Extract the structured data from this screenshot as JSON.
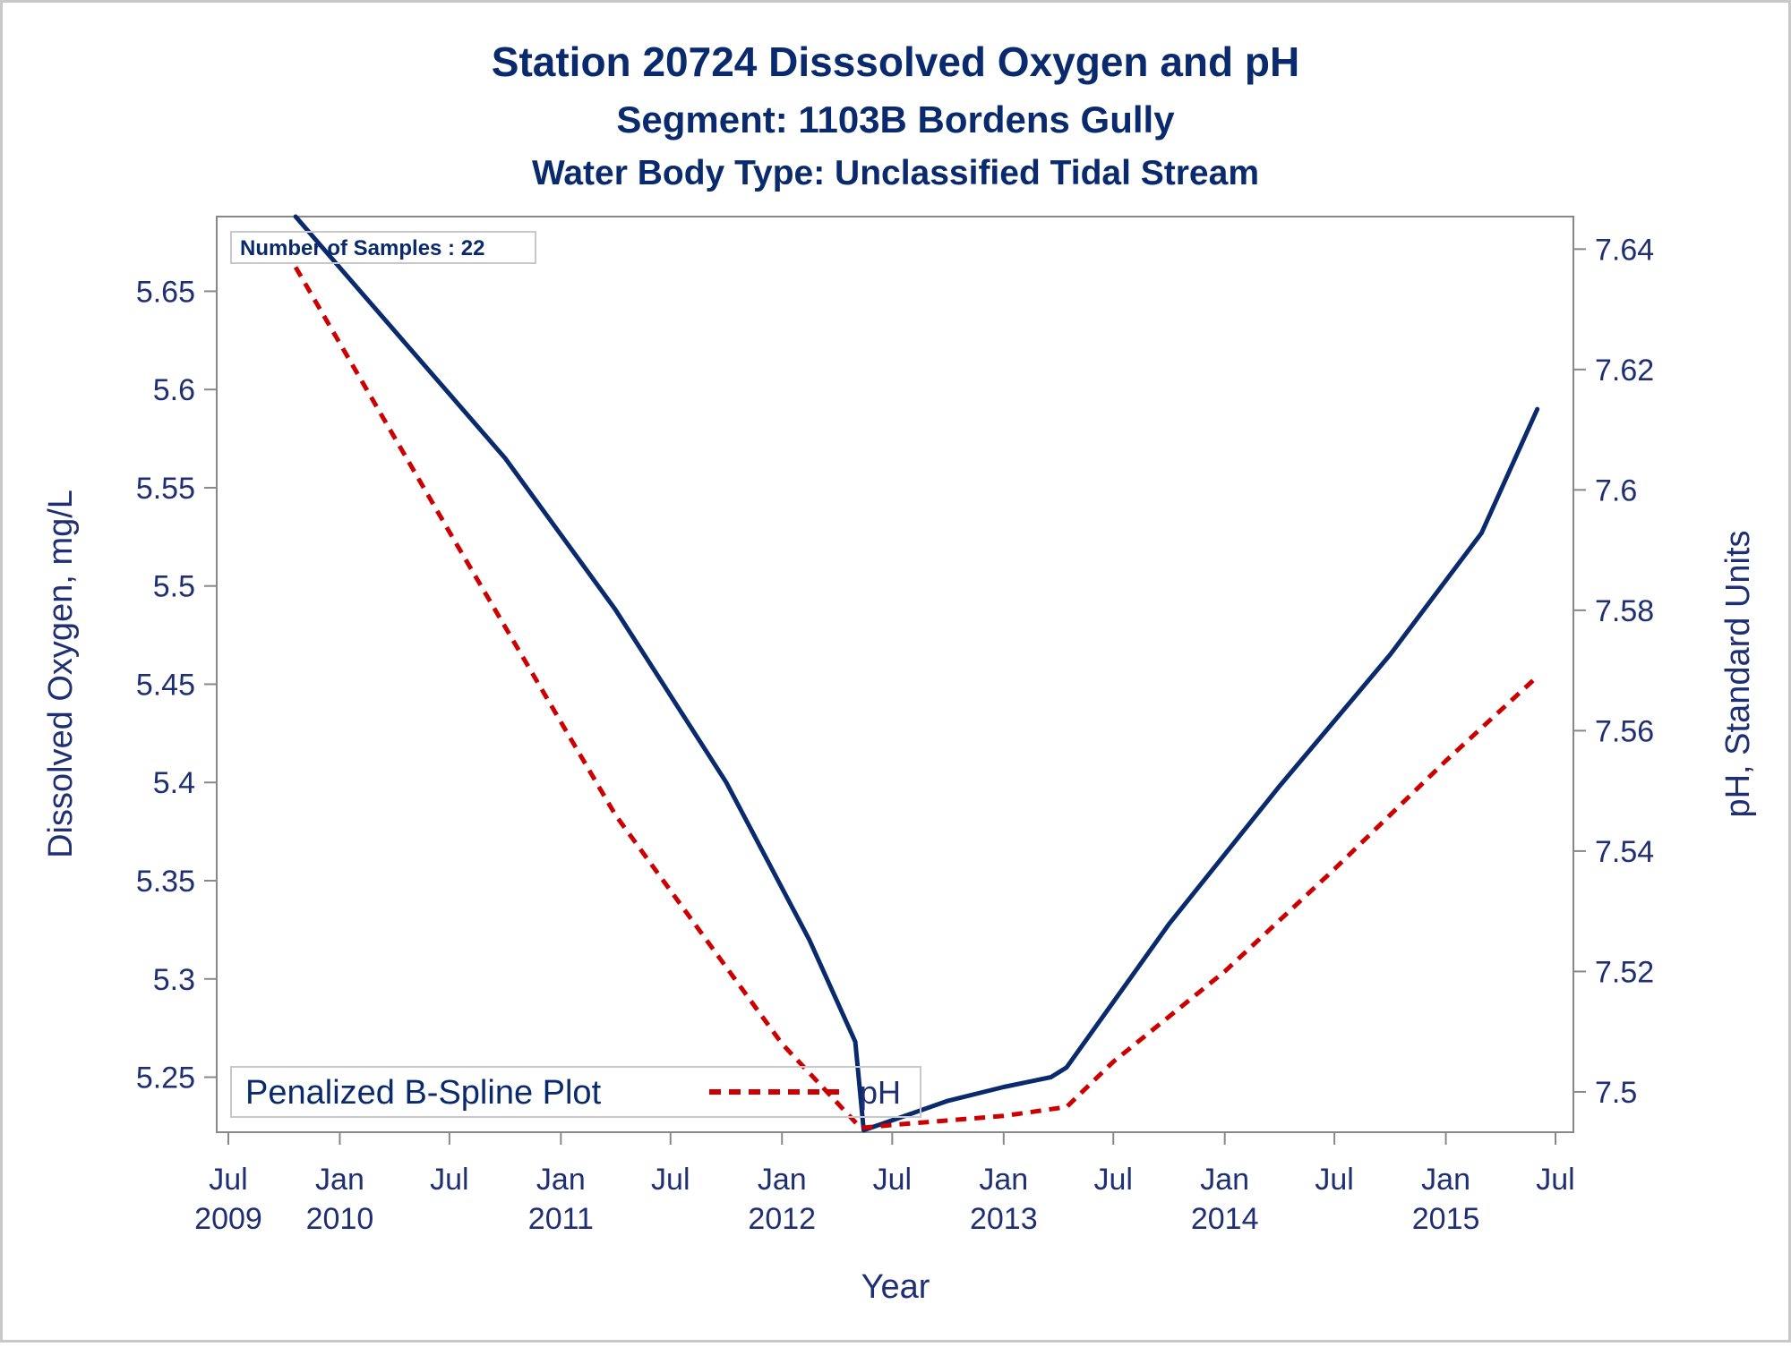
{
  "colors": {
    "title": "#0a2a6e",
    "axis_text": "#1f2f73",
    "do_line": "#0a2a6e",
    "ph_line": "#cc0000",
    "frame": "#888888",
    "border": "#c8c8c8"
  },
  "chart_data": {
    "type": "line",
    "titles": [
      "Station 20724   Disssolved Oxygen and pH",
      "Segment: 1103B  Bordens Gully",
      "Water Body Type: Unclassified Tidal Stream"
    ],
    "xlabel": "Year",
    "ylabel_left": "Dissolved Oxygen, mg/L",
    "ylabel_right": "pH, Standard Units",
    "annotation": "Number of Samples : 22",
    "grid": false,
    "legend": {
      "position": "bottom-left",
      "title": "Penalized B-Spline Plot",
      "entries": [
        "pH"
      ]
    },
    "x_axis": {
      "range": [
        "2009-07-01",
        "2015-07-01"
      ],
      "ticks": [
        {
          "date": "2009-07-01",
          "line1": "Jul",
          "line2": "2009"
        },
        {
          "date": "2010-01-01",
          "line1": "Jan",
          "line2": "2010"
        },
        {
          "date": "2010-07-01",
          "line1": "Jul",
          "line2": ""
        },
        {
          "date": "2011-01-01",
          "line1": "Jan",
          "line2": "2011"
        },
        {
          "date": "2011-07-01",
          "line1": "Jul",
          "line2": ""
        },
        {
          "date": "2012-01-01",
          "line1": "Jan",
          "line2": "2012"
        },
        {
          "date": "2012-07-01",
          "line1": "Jul",
          "line2": ""
        },
        {
          "date": "2013-01-01",
          "line1": "Jan",
          "line2": "2013"
        },
        {
          "date": "2013-07-01",
          "line1": "Jul",
          "line2": ""
        },
        {
          "date": "2014-01-01",
          "line1": "Jan",
          "line2": "2014"
        },
        {
          "date": "2014-07-01",
          "line1": "Jul",
          "line2": ""
        },
        {
          "date": "2015-01-01",
          "line1": "Jan",
          "line2": "2015"
        },
        {
          "date": "2015-07-01",
          "line1": "Jul",
          "line2": ""
        }
      ]
    },
    "y_left": {
      "range": [
        5.222,
        5.688
      ],
      "ticks": [
        "5.25",
        "5.3",
        "5.35",
        "5.4",
        "5.45",
        "5.5",
        "5.55",
        "5.6",
        "5.65"
      ]
    },
    "y_right": {
      "range": [
        7.4933,
        7.6454
      ],
      "ticks": [
        "7.5",
        "7.52",
        "7.54",
        "7.56",
        "7.58",
        "7.6",
        "7.62",
        "7.64"
      ]
    },
    "series": [
      {
        "axis": "left",
        "style": "solid",
        "x": [
          "2009-10-20",
          "2010-04-01",
          "2010-10-01",
          "2011-04-01",
          "2011-10-01",
          "2012-02-15",
          "2012-05-01",
          "2012-05-15",
          "2012-07-01",
          "2012-10-01",
          "2013-01-01",
          "2013-03-20",
          "2013-04-15",
          "2013-10-01",
          "2014-04-01",
          "2014-10-01",
          "2015-03-01",
          "2015-06-01"
        ],
        "values": [
          5.688,
          5.63,
          5.565,
          5.488,
          5.4,
          5.32,
          5.268,
          5.223,
          5.228,
          5.238,
          5.245,
          5.25,
          5.255,
          5.328,
          5.398,
          5.465,
          5.527,
          5.59
        ]
      },
      {
        "name": "pH",
        "axis": "right",
        "style": "dashed",
        "x": [
          "2009-10-20",
          "2010-07-01",
          "2011-04-01",
          "2012-01-01",
          "2012-05-10",
          "2012-07-01",
          "2013-01-01",
          "2013-04-15",
          "2013-07-01",
          "2014-01-01",
          "2014-07-01",
          "2015-01-01",
          "2015-06-01"
        ],
        "values": [
          7.637,
          7.593,
          7.546,
          7.508,
          7.494,
          7.4945,
          7.496,
          7.4975,
          7.505,
          7.52,
          7.537,
          7.555,
          7.569
        ]
      }
    ]
  }
}
